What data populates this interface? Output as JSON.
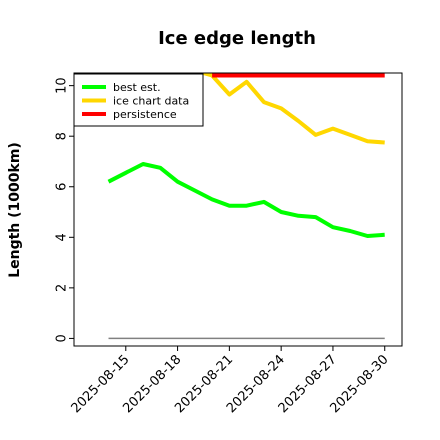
{
  "chart_data": {
    "type": "line",
    "title": "Ice edge length",
    "ylabel": "Length (1000km)",
    "xlabel": "",
    "x_dates": [
      "2025-08-14",
      "2025-08-15",
      "2025-08-16",
      "2025-08-17",
      "2025-08-18",
      "2025-08-19",
      "2025-08-20",
      "2025-08-21",
      "2025-08-22",
      "2025-08-23",
      "2025-08-24",
      "2025-08-25",
      "2025-08-26",
      "2025-08-27",
      "2025-08-28",
      "2025-08-29",
      "2025-08-30"
    ],
    "x_range": [
      "2025-08-12",
      "2025-08-31"
    ],
    "xticks": [
      "2025-08-15",
      "2025-08-18",
      "2025-08-21",
      "2025-08-24",
      "2025-08-27",
      "2025-08-30"
    ],
    "ylim": [
      -0.3,
      10.5
    ],
    "yticks": [
      "0",
      "2",
      "4",
      "6",
      "8",
      "10"
    ],
    "grid": false,
    "legend_position": "top-left",
    "series": [
      {
        "name": "best est.",
        "color": "#00ff00",
        "values": [
          6.2,
          6.55,
          6.9,
          6.75,
          6.2,
          5.85,
          5.5,
          5.25,
          5.25,
          5.4,
          5.0,
          4.85,
          4.8,
          4.4,
          4.25,
          4.05,
          4.1
        ]
      },
      {
        "name": "ice chart data",
        "color": "#ffd700",
        "dates": [
          "2025-08-19",
          "2025-08-20",
          "2025-08-21",
          "2025-08-22",
          "2025-08-23",
          "2025-08-24",
          "2025-08-25",
          "2025-08-26",
          "2025-08-27",
          "2025-08-28",
          "2025-08-29",
          "2025-08-30"
        ],
        "values": [
          10.6,
          10.4,
          9.65,
          10.15,
          9.35,
          9.1,
          8.6,
          8.05,
          8.3,
          8.05,
          7.8,
          7.75
        ]
      },
      {
        "name": "persistence",
        "color": "#ff0000",
        "dates": [
          "2025-08-20",
          "2025-08-30"
        ],
        "values": [
          10.4,
          10.4
        ]
      }
    ],
    "reference_line": {
      "color": "#808080",
      "dates": [
        "2025-08-14",
        "2025-08-30"
      ],
      "value": 0
    }
  }
}
